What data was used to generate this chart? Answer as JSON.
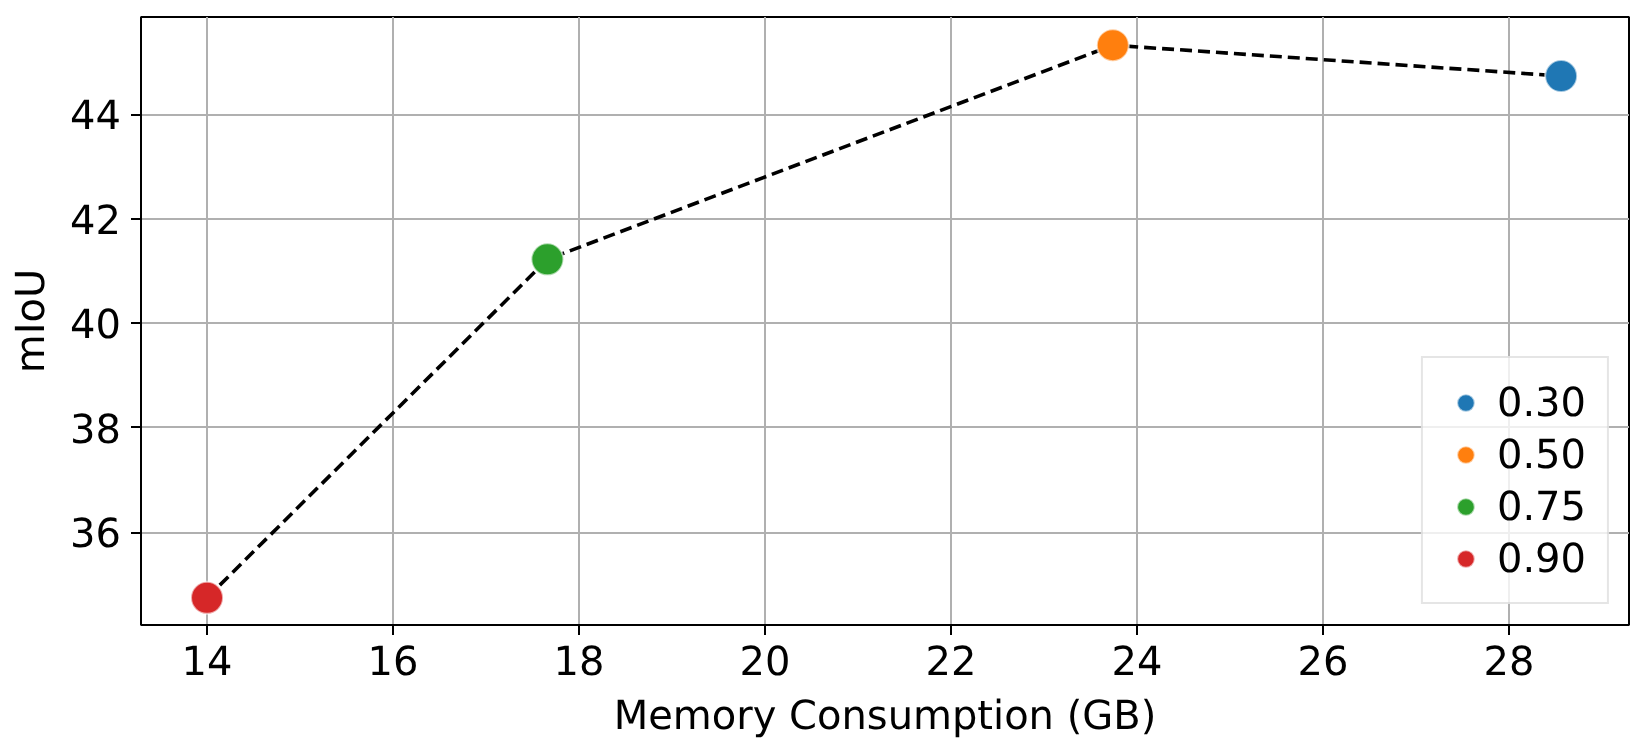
{
  "chart_data": {
    "type": "scatter",
    "xlabel": "Memory Consumption (GB)",
    "ylabel": "mIoU",
    "xlim": [
      13.29,
      29.29
    ],
    "ylim": [
      34.22,
      45.86
    ],
    "xticks": [
      14,
      16,
      18,
      20,
      22,
      24,
      26,
      28
    ],
    "yticks": [
      36,
      38,
      40,
      42,
      44
    ],
    "grid": true,
    "legend": "bottom right",
    "series": [
      {
        "type": "line",
        "color": "#000000",
        "line_style": "dashed",
        "x": [
          14.0,
          17.66,
          23.74,
          28.56
        ],
        "values": [
          34.74,
          41.22,
          45.32,
          44.73
        ]
      },
      {
        "name": "0.30",
        "color": "#1f77b4",
        "marker": "circle",
        "x": [
          28.56
        ],
        "values": [
          44.73
        ]
      },
      {
        "name": "0.50",
        "color": "#ff7f0e",
        "marker": "circle",
        "x": [
          23.74
        ],
        "values": [
          45.32
        ]
      },
      {
        "name": "0.75",
        "color": "#2ca02c",
        "marker": "circle",
        "x": [
          17.66
        ],
        "values": [
          41.22
        ]
      },
      {
        "name": "0.90",
        "color": "#d62728",
        "marker": "circle",
        "x": [
          14.0
        ],
        "values": [
          34.74
        ]
      }
    ]
  }
}
